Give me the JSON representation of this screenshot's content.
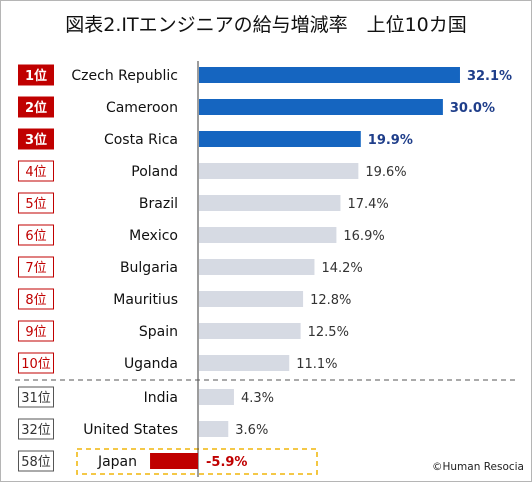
{
  "title": "図表2.ITエンジニアの給与増減率　上位10カ国",
  "credit": "©Human Resocia",
  "colors": {
    "top3_bar": "#1565c0",
    "other_bar": "#d6dae3",
    "negative_bar": "#c00000",
    "top3_value_text": "#1f3e8a",
    "rank_red": "#c00000",
    "rank_gray": "#555555",
    "highlight_border": "#f2c12e"
  },
  "chart_data": {
    "type": "bar",
    "orientation": "horizontal",
    "value_suffix": "%",
    "categories": [
      "Czech Republic",
      "Cameroon",
      "Costa Rica",
      "Poland",
      "Brazil",
      "Mexico",
      "Bulgaria",
      "Mauritius",
      "Spain",
      "Uganda",
      "India",
      "United States",
      "Japan"
    ],
    "ranks": [
      "1位",
      "2位",
      "3位",
      "4位",
      "5位",
      "6位",
      "7位",
      "8位",
      "9位",
      "10位",
      "31位",
      "32位",
      "58位"
    ],
    "values": [
      32.1,
      30.0,
      19.9,
      19.6,
      17.4,
      16.9,
      14.2,
      12.8,
      12.5,
      11.1,
      4.3,
      3.6,
      -5.9
    ],
    "value_labels": [
      "32.1%",
      "30.0%",
      "19.9%",
      "19.6%",
      "17.4%",
      "16.9%",
      "14.2%",
      "12.8%",
      "12.5%",
      "11.1%",
      "4.3%",
      "3.6%",
      "-5.9%"
    ],
    "highlight_top": 3,
    "separator_after_rank_index": 9,
    "highlighted_category": "Japan"
  }
}
